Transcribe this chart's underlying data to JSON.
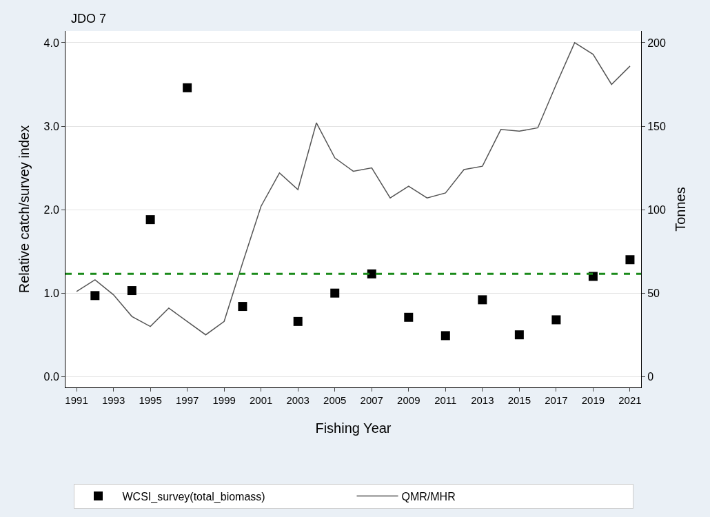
{
  "chart_data": {
    "type": "scatter",
    "title": "JDO 7",
    "xlabel": "Fishing Year",
    "ylabel": "Relative catch/survey index",
    "y2label": "Tonnes",
    "series": [
      {
        "name": "WCSI_survey(total_biomass)",
        "marker": "square",
        "color": "#000000",
        "x": [
          1992,
          1994,
          1995,
          1997,
          2000,
          2003,
          2005,
          2007,
          2009,
          2011,
          2013,
          2015,
          2017,
          2019,
          2021
        ],
        "values": [
          0.97,
          1.03,
          1.88,
          3.46,
          0.84,
          0.66,
          1.0,
          1.23,
          0.71,
          0.49,
          0.92,
          0.5,
          0.68,
          1.2,
          1.4
        ]
      },
      {
        "name": "QMR/MHR",
        "type": "line",
        "marker": "none",
        "line_style": "solid",
        "axis": "y2",
        "color": "#555555",
        "x": [
          1991,
          1992,
          1993,
          1994,
          1995,
          1996,
          1997,
          1998,
          1999,
          2000,
          2001,
          2002,
          2003,
          2004,
          2005,
          2006,
          2007,
          2008,
          2009,
          2010,
          2011,
          2012,
          2013,
          2014,
          2015,
          2016,
          2017,
          2018,
          2019,
          2020,
          2021
        ],
        "values": [
          51,
          58,
          49,
          36,
          30,
          41,
          33,
          25,
          33,
          68,
          102,
          122,
          112,
          152,
          131,
          123,
          125,
          107,
          114,
          107,
          110,
          124,
          126,
          148,
          147,
          149,
          175,
          200,
          193,
          175,
          186
        ]
      }
    ],
    "ref_lines": [
      {
        "axis": "y",
        "value": 1.23,
        "color": "#1a8a1a",
        "line_style": "dashed"
      }
    ],
    "xlim": [
      1990.4,
      2021.6
    ],
    "xticks": [
      1991,
      1993,
      1995,
      1997,
      1999,
      2001,
      2003,
      2005,
      2007,
      2009,
      2011,
      2013,
      2015,
      2017,
      2019,
      2021
    ],
    "ylim": [
      -0.13,
      4.14
    ],
    "yticks": [
      {
        "value": 0,
        "label": "0.0"
      },
      {
        "value": 1,
        "label": "1.0"
      },
      {
        "value": 2,
        "label": "2.0"
      },
      {
        "value": 3,
        "label": "3.0"
      },
      {
        "value": 4,
        "label": "4.0"
      }
    ],
    "y2lim": [
      -6.5,
      207
    ],
    "y2ticks": [
      0,
      50,
      100,
      150,
      200
    ],
    "grid": "y",
    "legend": "bottom"
  }
}
